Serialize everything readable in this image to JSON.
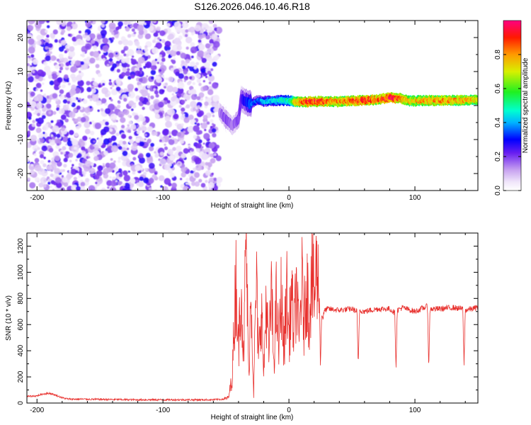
{
  "title": "S126.2026.046.10.46.R18",
  "chart_data": [
    {
      "type": "heatmap",
      "title": "S126.2026.046.10.46.R18",
      "xlabel": "Height of straight line (km)",
      "ylabel": "Frequency (Hz)",
      "xlim": [
        -208,
        150
      ],
      "ylim": [
        -25,
        25
      ],
      "xticks": [
        -200,
        -100,
        0,
        100
      ],
      "yticks": [
        -20,
        -10,
        0,
        10,
        20
      ],
      "description_x_regions": [
        {
          "from": -208,
          "to": -55,
          "content": "broadband noise"
        },
        {
          "from": -55,
          "to": 150,
          "content": "narrow signal near 0-3 Hz"
        }
      ],
      "signal_track": {
        "x": [
          -55,
          -50,
          -45,
          -40,
          -38,
          -34,
          -30,
          -25,
          -20,
          -10,
          0,
          5,
          10,
          20,
          40,
          60,
          70,
          80,
          90,
          95,
          110,
          130,
          150
        ],
        "freq": [
          -2,
          -4,
          -6,
          -4,
          2,
          1,
          0.5,
          1.5,
          1.2,
          1.5,
          1.5,
          1,
          1,
          1.2,
          1.2,
          1.5,
          1.7,
          2.4,
          2,
          1.3,
          1.5,
          1.5,
          1.6
        ],
        "amplitude": [
          0.15,
          0.2,
          0.15,
          0.2,
          0.25,
          0.3,
          0.35,
          0.35,
          0.4,
          0.45,
          0.5,
          0.75,
          0.85,
          0.9,
          0.8,
          0.9,
          0.85,
          0.95,
          0.8,
          0.75,
          0.8,
          0.8,
          0.75
        ]
      },
      "colorbar": {
        "label": "Normalized spectral amplitude",
        "range": [
          0.0,
          1.0
        ],
        "ticks": [
          "0.0",
          "0.2",
          "0.4",
          "0.6",
          "0.8"
        ],
        "tick_values": [
          0.0,
          0.2,
          0.4,
          0.6,
          0.8
        ]
      }
    },
    {
      "type": "line",
      "xlabel": "Height of straight line (km)",
      "ylabel": "SNR (10 * v/v)",
      "xlim": [
        -208,
        150
      ],
      "ylim": [
        0,
        1300
      ],
      "xticks": [
        -200,
        -100,
        0,
        100
      ],
      "yticks": [
        0,
        200,
        400,
        600,
        800,
        1000,
        1200
      ],
      "color": "#e8312e",
      "series": [
        {
          "name": "SNR",
          "x": [
            -208,
            -200,
            -195,
            -190,
            -185,
            -180,
            -175,
            -165,
            -150,
            -120,
            -100,
            -80,
            -60,
            -52,
            -48,
            -45,
            -42,
            -40,
            -38,
            -36,
            -34,
            -32,
            -30,
            -28,
            -26,
            -24,
            -22,
            -20,
            -18,
            -16,
            -14,
            -12,
            -10,
            -8,
            -6,
            -4,
            -2,
            0,
            2,
            4,
            6,
            8,
            10,
            12,
            14,
            16,
            18,
            20,
            22,
            23,
            24,
            25,
            26,
            27,
            28,
            30,
            40,
            50,
            54,
            55,
            56,
            60,
            70,
            80,
            84,
            85,
            86,
            90,
            100,
            110,
            111,
            112,
            120,
            130,
            138,
            139,
            140,
            150
          ],
          "y": [
            50,
            55,
            70,
            75,
            60,
            40,
            30,
            30,
            28,
            25,
            25,
            25,
            25,
            30,
            40,
            200,
            980,
            400,
            1000,
            300,
            1300,
            200,
            900,
            50,
            950,
            300,
            800,
            200,
            820,
            350,
            850,
            300,
            780,
            400,
            870,
            350,
            900,
            500,
            840,
            520,
            900,
            450,
            960,
            600,
            950,
            650,
            1000,
            800,
            1030,
            900,
            950,
            270,
            680,
            650,
            700,
            720,
            710,
            720,
            700,
            270,
            710,
            700,
            720,
            720,
            690,
            270,
            710,
            730,
            700,
            740,
            270,
            720,
            720,
            730,
            720,
            290,
            710,
            730
          ]
        }
      ]
    }
  ]
}
